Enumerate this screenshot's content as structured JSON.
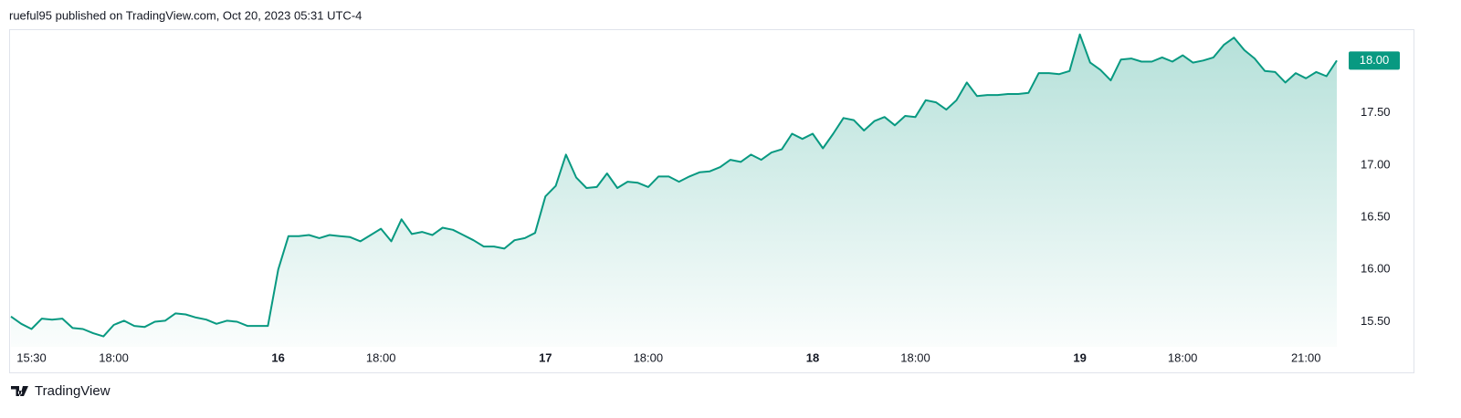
{
  "header": "rueful95 published on TradingView.com, Oct 20, 2023 05:31 UTC-4",
  "footer": "TradingView",
  "chart_data": {
    "type": "line",
    "color": "#089981",
    "area_fill": true,
    "grid": false,
    "categories": [
      null,
      null,
      "15:30",
      null,
      null,
      null,
      null,
      null,
      null,
      null,
      "18:00",
      null,
      null,
      null,
      null,
      null,
      null,
      null,
      null,
      null,
      null,
      null,
      null,
      null,
      null,
      null,
      "16",
      null,
      null,
      null,
      null,
      null,
      null,
      null,
      null,
      null,
      "18:00",
      null,
      null,
      null,
      null,
      null,
      null,
      null,
      null,
      null,
      null,
      null,
      null,
      null,
      null,
      null,
      "17",
      null,
      null,
      null,
      null,
      null,
      null,
      null,
      null,
      null,
      "18:00",
      null,
      null,
      null,
      null,
      null,
      null,
      null,
      null,
      null,
      null,
      null,
      null,
      null,
      null,
      null,
      "18",
      null,
      null,
      null,
      null,
      null,
      null,
      null,
      null,
      null,
      "18:00",
      null,
      null,
      null,
      null,
      null,
      null,
      null,
      null,
      null,
      null,
      null,
      null,
      null,
      null,
      null,
      "19",
      null,
      null,
      null,
      null,
      null,
      null,
      null,
      null,
      null,
      "18:00",
      null,
      null,
      null,
      null,
      null,
      null,
      null,
      null,
      null,
      null,
      null,
      "21:00",
      null,
      null,
      null
    ],
    "values": [
      15.55,
      15.48,
      15.43,
      15.53,
      15.52,
      15.53,
      15.44,
      15.43,
      15.39,
      15.36,
      15.47,
      15.51,
      15.46,
      15.45,
      15.5,
      15.51,
      15.58,
      15.57,
      15.54,
      15.52,
      15.48,
      15.51,
      15.5,
      15.46,
      15.46,
      15.46,
      16.0,
      16.32,
      16.32,
      16.33,
      16.3,
      16.33,
      16.32,
      16.31,
      16.27,
      16.33,
      16.39,
      16.27,
      16.48,
      16.34,
      16.36,
      16.33,
      16.4,
      16.38,
      16.33,
      16.28,
      16.22,
      16.22,
      16.2,
      16.28,
      16.3,
      16.35,
      16.7,
      16.8,
      17.1,
      16.88,
      16.78,
      16.79,
      16.92,
      16.78,
      16.84,
      16.83,
      16.79,
      16.89,
      16.89,
      16.84,
      16.89,
      16.93,
      16.94,
      16.98,
      17.05,
      17.03,
      17.1,
      17.05,
      17.12,
      17.15,
      17.3,
      17.25,
      17.3,
      17.16,
      17.3,
      17.45,
      17.43,
      17.33,
      17.42,
      17.46,
      17.38,
      17.47,
      17.46,
      17.62,
      17.6,
      17.53,
      17.62,
      17.79,
      17.66,
      17.67,
      17.67,
      17.68,
      17.68,
      17.69,
      17.88,
      17.88,
      17.87,
      17.9,
      18.25,
      17.98,
      17.91,
      17.81,
      18.01,
      18.02,
      17.99,
      17.99,
      18.03,
      17.99,
      18.05,
      17.98,
      18.0,
      18.03,
      18.15,
      18.22,
      18.1,
      18.02,
      17.9,
      17.89,
      17.79,
      17.88,
      17.83,
      17.89,
      17.85,
      18.0
    ],
    "value_labels": [
      null,
      null,
      null,
      null,
      null,
      null,
      null,
      null,
      null,
      null,
      null,
      null,
      null,
      null,
      null,
      null,
      null,
      null,
      null,
      null,
      null,
      null,
      null,
      null,
      null,
      null,
      null,
      null,
      null,
      null,
      null,
      null,
      null,
      null,
      null,
      null,
      null,
      null,
      null,
      null,
      null,
      null,
      null,
      null,
      null,
      null,
      null,
      null,
      null,
      null,
      null,
      null,
      null,
      null,
      null,
      null,
      null,
      null,
      null,
      null,
      null,
      null,
      null,
      null,
      null,
      null,
      null,
      null,
      null,
      null,
      null,
      null,
      null,
      null,
      null,
      null,
      null,
      null,
      null,
      null,
      null,
      null,
      null,
      null,
      null,
      null,
      null,
      null,
      null,
      null,
      null,
      null,
      null,
      null,
      null,
      null,
      null,
      null,
      null,
      null,
      null,
      null,
      null,
      null,
      null,
      null,
      null,
      null,
      null,
      null,
      null,
      null,
      null,
      null,
      null,
      null,
      null,
      null,
      null,
      null,
      null,
      null,
      null,
      null,
      null,
      null,
      null,
      null,
      null,
      "18.00"
    ],
    "ylim": [
      15.26,
      18.3
    ],
    "yticks": [
      {
        "value": 15.5,
        "label": "15.50"
      },
      {
        "value": 16,
        "label": "16.00"
      },
      {
        "value": 16.5,
        "label": "16.50"
      },
      {
        "value": 17,
        "label": "17.00"
      },
      {
        "value": 17.5,
        "label": "17.50"
      },
      {
        "value": 18,
        "label": "18.00"
      }
    ]
  }
}
